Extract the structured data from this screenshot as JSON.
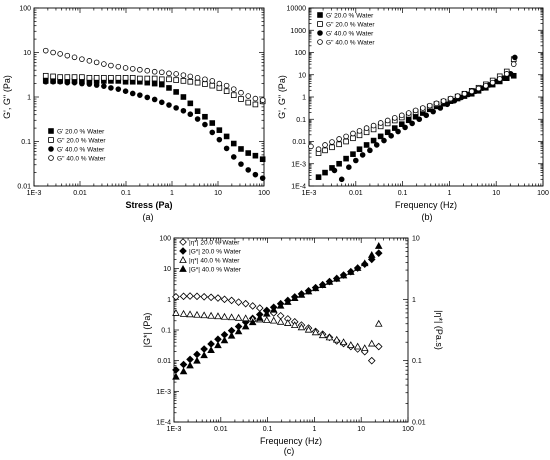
{
  "chart_data": [
    {
      "type": "scatter",
      "panel": "a",
      "caption": "(a)",
      "xlabel": "Stress (Pa)",
      "ylabel": "G', G'' (Pa)",
      "xscale": "log",
      "yscale": "log",
      "xlim": [
        0.001,
        100
      ],
      "ylim": [
        0.01,
        100
      ],
      "xticks": [
        "1E-3",
        "0.01",
        "0.1",
        "1",
        "10",
        "100"
      ],
      "yticks": [
        "0.01",
        "0.1",
        "1",
        "10",
        "100"
      ],
      "legend_position": "lower-left",
      "series": [
        {
          "name": "G' 20.0 % Water",
          "marker": "square-filled",
          "x": [
            0.0018,
            0.0026,
            0.0037,
            0.0053,
            0.0076,
            0.011,
            0.016,
            0.023,
            0.033,
            0.047,
            0.068,
            0.098,
            0.14,
            0.2,
            0.29,
            0.42,
            0.6,
            0.86,
            1.23,
            1.77,
            2.5,
            3.6,
            5.2,
            7.5,
            10.7,
            15.4,
            22,
            31.6,
            45.4,
            65,
            93.5
          ],
          "y": [
            2.3,
            2.3,
            2.3,
            2.3,
            2.3,
            2.3,
            2.3,
            2.3,
            2.3,
            2.3,
            2.3,
            2.2,
            2.2,
            2.2,
            2.1,
            2.0,
            1.9,
            1.6,
            1.3,
            1.0,
            0.72,
            0.48,
            0.36,
            0.26,
            0.18,
            0.13,
            0.09,
            0.068,
            0.055,
            0.048,
            0.04
          ]
        },
        {
          "name": "G'' 20.0 % Water",
          "marker": "square-open",
          "x": [
            0.0018,
            0.0026,
            0.0037,
            0.0053,
            0.0076,
            0.011,
            0.016,
            0.023,
            0.033,
            0.047,
            0.068,
            0.098,
            0.14,
            0.2,
            0.29,
            0.42,
            0.6,
            0.86,
            1.23,
            1.77,
            2.5,
            3.6,
            5.2,
            7.5,
            10.7,
            15.4,
            22,
            31.6,
            45.4,
            65,
            93.5
          ],
          "y": [
            3.0,
            2.9,
            2.8,
            2.8,
            2.8,
            2.8,
            2.7,
            2.7,
            2.7,
            2.7,
            2.7,
            2.7,
            2.7,
            2.6,
            2.6,
            2.6,
            2.5,
            2.5,
            2.4,
            2.3,
            2.2,
            2.1,
            1.95,
            1.8,
            1.6,
            1.35,
            1.1,
            0.9,
            0.75,
            0.68,
            0.8
          ]
        },
        {
          "name": "G' 40.0 % Water",
          "marker": "circle-filled",
          "x": [
            0.0018,
            0.0026,
            0.0037,
            0.0053,
            0.0076,
            0.011,
            0.016,
            0.023,
            0.033,
            0.047,
            0.068,
            0.098,
            0.14,
            0.2,
            0.29,
            0.42,
            0.6,
            0.86,
            1.23,
            1.77,
            2.5,
            3.6,
            5.2,
            7.5,
            10.7,
            15.4,
            22,
            31.6,
            45.4,
            65,
            93.5
          ],
          "y": [
            2.2,
            2.2,
            2.2,
            2.1,
            2.1,
            2.0,
            1.95,
            1.85,
            1.75,
            1.6,
            1.5,
            1.35,
            1.2,
            1.1,
            0.98,
            0.88,
            0.76,
            0.66,
            0.57,
            0.49,
            0.41,
            0.32,
            0.24,
            0.16,
            0.11,
            0.07,
            0.045,
            0.031,
            0.023,
            0.018,
            0.015
          ]
        },
        {
          "name": "G'' 40.0 % Water",
          "marker": "circle-open",
          "x": [
            0.0018,
            0.0026,
            0.0037,
            0.0053,
            0.0076,
            0.011,
            0.016,
            0.023,
            0.033,
            0.047,
            0.068,
            0.098,
            0.14,
            0.2,
            0.29,
            0.42,
            0.6,
            0.86,
            1.23,
            1.77,
            2.5,
            3.6,
            5.2,
            7.5,
            10.7,
            15.4,
            22,
            31.6,
            45.4,
            65,
            93.5
          ],
          "y": [
            11,
            10,
            9.3,
            8.5,
            7.8,
            7.1,
            6.5,
            6.0,
            5.5,
            5.1,
            4.8,
            4.5,
            4.3,
            4.1,
            3.9,
            3.7,
            3.6,
            3.4,
            3.3,
            3.1,
            2.9,
            2.7,
            2.5,
            2.3,
            2.0,
            1.8,
            1.5,
            1.25,
            1.05,
            0.92,
            0.85
          ]
        }
      ]
    },
    {
      "type": "scatter",
      "panel": "b",
      "caption": "(b)",
      "xlabel": "Frequency (Hz)",
      "ylabel": "G', G'' (Pa)",
      "xscale": "log",
      "yscale": "log",
      "xlim": [
        0.001,
        100
      ],
      "ylim": [
        0.0001,
        10000
      ],
      "xticks": [
        "1E-3",
        "0.01",
        "0.1",
        "1",
        "10",
        "100"
      ],
      "yticks": [
        "1E-4",
        "1E-3",
        "0.01",
        "0.1",
        "1",
        "10",
        "100",
        "1000",
        "10000"
      ],
      "legend_position": "top-left",
      "series": [
        {
          "name": "G' 20.0 % Water",
          "marker": "square-filled",
          "x": [
            0.0016,
            0.0022,
            0.0031,
            0.0044,
            0.0062,
            0.0087,
            0.012,
            0.017,
            0.024,
            0.034,
            0.048,
            0.068,
            0.096,
            0.135,
            0.19,
            0.27,
            0.38,
            0.53,
            0.75,
            1.06,
            1.5,
            2.1,
            3.0,
            4.2,
            6.0,
            8.4,
            11.9,
            16.8,
            23.7
          ],
          "y": [
            0.00025,
            0.0004,
            0.00065,
            0.001,
            0.0017,
            0.0027,
            0.0045,
            0.007,
            0.011,
            0.017,
            0.026,
            0.04,
            0.06,
            0.09,
            0.13,
            0.19,
            0.28,
            0.38,
            0.5,
            0.65,
            0.85,
            1.1,
            1.4,
            1.9,
            2.6,
            3.6,
            5,
            7,
            9
          ]
        },
        {
          "name": "G'' 20.0 % Water",
          "marker": "square-open",
          "x": [
            0.0016,
            0.0022,
            0.0031,
            0.0044,
            0.0062,
            0.0087,
            0.012,
            0.017,
            0.024,
            0.034,
            0.048,
            0.068,
            0.096,
            0.135,
            0.19,
            0.27,
            0.38,
            0.53,
            0.75,
            1.06,
            1.5,
            2.1,
            3.0,
            4.2,
            6.0,
            8.4,
            11.9,
            16.8,
            23.7
          ],
          "y": [
            0.003,
            0.004,
            0.0055,
            0.0075,
            0.01,
            0.014,
            0.019,
            0.026,
            0.035,
            0.048,
            0.065,
            0.088,
            0.12,
            0.16,
            0.21,
            0.28,
            0.37,
            0.48,
            0.62,
            0.8,
            1.05,
            1.4,
            1.9,
            2.6,
            3.7,
            5.5,
            8.5,
            14,
            50
          ]
        },
        {
          "name": "G' 40.0 % Water",
          "marker": "circle-filled",
          "x": [
            0.0035,
            0.005,
            0.0071,
            0.01,
            0.014,
            0.02,
            0.028,
            0.04,
            0.057,
            0.08,
            0.113,
            0.16,
            0.227,
            0.32,
            0.45,
            0.64,
            0.9,
            1.28,
            1.8,
            2.55,
            3.6,
            5.1,
            7.2,
            10.2,
            14.4,
            20.4,
            25
          ],
          "y": [
            0.0005,
            0.0002,
            0.0007,
            0.0014,
            0.0025,
            0.004,
            0.007,
            0.011,
            0.018,
            0.028,
            0.043,
            0.065,
            0.1,
            0.15,
            0.22,
            0.32,
            0.47,
            0.68,
            0.95,
            1.3,
            1.8,
            2.5,
            3.5,
            5,
            7,
            11,
            60
          ]
        },
        {
          "name": "G'' 40.0 % Water",
          "marker": "circle-open",
          "x": [
            0.0011,
            0.0016,
            0.0022,
            0.0031,
            0.0044,
            0.0062,
            0.0087,
            0.012,
            0.017,
            0.024,
            0.034,
            0.048,
            0.068,
            0.096,
            0.135,
            0.19,
            0.27,
            0.38,
            0.53,
            0.75,
            1.06,
            1.5,
            2.1,
            3.0,
            4.2,
            6.0,
            8.4,
            11.9,
            16.8,
            23.7
          ],
          "y": [
            0.006,
            0.0045,
            0.007,
            0.0095,
            0.013,
            0.017,
            0.023,
            0.03,
            0.04,
            0.052,
            0.068,
            0.088,
            0.115,
            0.15,
            0.19,
            0.25,
            0.32,
            0.41,
            0.52,
            0.66,
            0.85,
            1.1,
            1.4,
            1.8,
            2.4,
            3.2,
            4.4,
            6.5,
            11,
            30
          ]
        }
      ]
    },
    {
      "type": "scatter",
      "panel": "c",
      "caption": "(c)",
      "xlabel": "Frequency (Hz)",
      "ylabel": "|G*| (Pa)",
      "ylabel_right": "|η*| (Pa.s)",
      "xscale": "log",
      "yscale": "log",
      "xlim": [
        0.001,
        100
      ],
      "ylim": [
        0.0001,
        100
      ],
      "ylim_right": [
        0.01,
        10
      ],
      "xticks": [
        "1E-3",
        "0.01",
        "0.1",
        "1",
        "10",
        "100"
      ],
      "yticks": [
        "1E-4",
        "1E-3",
        "0.01",
        "0.1",
        "1",
        "10",
        "100"
      ],
      "yticks_right": [
        "0.01",
        "0.1",
        "1",
        "10"
      ],
      "legend_position": "top-left",
      "series": [
        {
          "name": "|η*| 20.0 % Water",
          "marker": "diamond-open",
          "axis": "right",
          "x": [
            0.0011,
            0.0016,
            0.0022,
            0.0031,
            0.0044,
            0.0062,
            0.0087,
            0.012,
            0.017,
            0.024,
            0.034,
            0.048,
            0.068,
            0.096,
            0.135,
            0.19,
            0.27,
            0.38,
            0.53,
            0.75,
            1.06,
            1.5,
            2.1,
            3.0,
            4.2,
            6.0,
            8.4,
            11.9,
            16.8,
            23.7
          ],
          "y": [
            1.1,
            1.12,
            1.13,
            1.12,
            1.1,
            1.08,
            1.05,
            1.0,
            0.96,
            0.9,
            0.85,
            0.78,
            0.72,
            0.66,
            0.6,
            0.54,
            0.48,
            0.43,
            0.38,
            0.34,
            0.3,
            0.27,
            0.24,
            0.21,
            0.19,
            0.17,
            0.155,
            0.14,
            0.1,
            0.17
          ]
        },
        {
          "name": "|G*| 20.0 % Water",
          "marker": "diamond-filled",
          "axis": "left",
          "x": [
            0.0011,
            0.0016,
            0.0022,
            0.0031,
            0.0044,
            0.0062,
            0.0087,
            0.012,
            0.017,
            0.024,
            0.034,
            0.048,
            0.068,
            0.096,
            0.135,
            0.19,
            0.27,
            0.38,
            0.53,
            0.75,
            1.06,
            1.5,
            2.1,
            3.0,
            4.2,
            6.0,
            8.4,
            11.9,
            16.8,
            23.7
          ],
          "y": [
            0.005,
            0.0075,
            0.011,
            0.016,
            0.024,
            0.035,
            0.05,
            0.07,
            0.095,
            0.13,
            0.18,
            0.24,
            0.32,
            0.42,
            0.55,
            0.72,
            0.92,
            1.2,
            1.5,
            1.9,
            2.4,
            3.0,
            3.8,
            4.8,
            6.2,
            8.0,
            10.5,
            14,
            20,
            32
          ]
        },
        {
          "name": "|η*| 40.0 % Water",
          "marker": "triangle-open",
          "axis": "right",
          "x": [
            0.0011,
            0.0016,
            0.0022,
            0.0031,
            0.0044,
            0.0062,
            0.0087,
            0.012,
            0.017,
            0.024,
            0.034,
            0.048,
            0.068,
            0.096,
            0.135,
            0.19,
            0.27,
            0.38,
            0.53,
            0.75,
            1.06,
            1.5,
            2.1,
            3.0,
            4.2,
            6.0,
            8.4,
            11.9,
            16.8,
            23.7
          ],
          "y": [
            0.6,
            0.58,
            0.57,
            0.56,
            0.55,
            0.54,
            0.53,
            0.52,
            0.51,
            0.5,
            0.49,
            0.48,
            0.47,
            0.46,
            0.45,
            0.43,
            0.41,
            0.38,
            0.35,
            0.32,
            0.29,
            0.26,
            0.24,
            0.22,
            0.2,
            0.18,
            0.17,
            0.16,
            0.19,
            0.4
          ]
        },
        {
          "name": "|G*| 40.0 % Water",
          "marker": "triangle-filled",
          "axis": "left",
          "x": [
            0.0011,
            0.0016,
            0.0022,
            0.0031,
            0.0044,
            0.0062,
            0.0087,
            0.012,
            0.017,
            0.024,
            0.034,
            0.048,
            0.068,
            0.096,
            0.135,
            0.19,
            0.27,
            0.38,
            0.53,
            0.75,
            1.06,
            1.5,
            2.1,
            3.0,
            4.2,
            6.0,
            8.4,
            11.9,
            16.8,
            23.7
          ],
          "y": [
            0.003,
            0.0045,
            0.007,
            0.01,
            0.015,
            0.022,
            0.032,
            0.046,
            0.065,
            0.09,
            0.13,
            0.18,
            0.25,
            0.34,
            0.46,
            0.62,
            0.82,
            1.1,
            1.4,
            1.8,
            2.3,
            2.9,
            3.7,
            4.7,
            6.0,
            7.8,
            10.5,
            15,
            28,
            55
          ]
        }
      ]
    }
  ]
}
